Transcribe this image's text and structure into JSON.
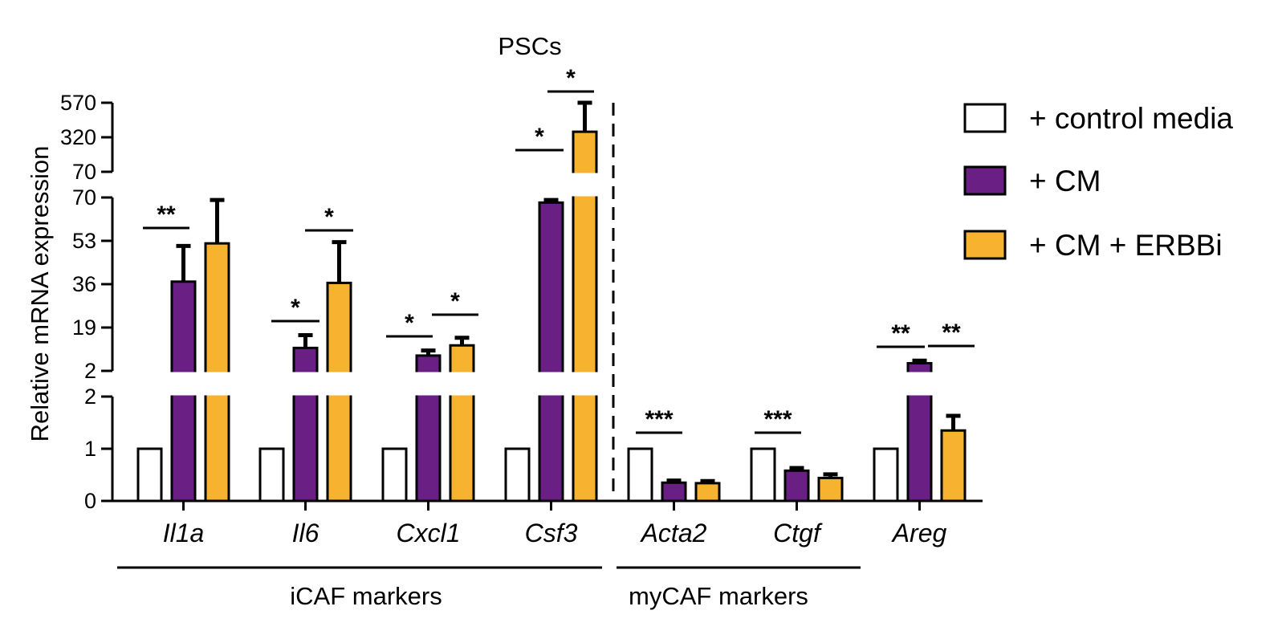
{
  "chart_data": {
    "type": "bar",
    "title": "PSCs",
    "ylabel": "Relative mRNA expression",
    "xlabel": "",
    "y_axis_segments": [
      {
        "name": "lower",
        "ylim": [
          0,
          2
        ],
        "ticks": [
          "0",
          "1",
          "2"
        ]
      },
      {
        "name": "middle",
        "ylim": [
          2,
          70
        ],
        "ticks": [
          "2",
          "19",
          "36",
          "53",
          "70"
        ]
      },
      {
        "name": "upper",
        "ylim": [
          70,
          570
        ],
        "ticks": [
          "70",
          "320",
          "570"
        ]
      }
    ],
    "categories": [
      "Il1a",
      "Il6",
      "Cxcl1",
      "Csf3",
      "Acta2",
      "Ctgf",
      "Areg"
    ],
    "series": [
      {
        "name": "+ control media",
        "color": "#ffffff",
        "values": [
          1,
          1,
          1,
          1,
          1,
          1,
          1
        ],
        "errors": [
          0,
          0,
          0,
          0,
          0,
          0,
          0
        ]
      },
      {
        "name": "+ CM",
        "color": "#6a1f85",
        "values": [
          37,
          11,
          8,
          68,
          0.35,
          0.58,
          5
        ],
        "errors": [
          14,
          5,
          2,
          1,
          0.04,
          0.05,
          1
        ]
      },
      {
        "name": "+ CM + ERBBi",
        "color": "#f7b32f",
        "values": [
          52,
          36.5,
          12,
          360,
          0.34,
          0.44,
          1.35
        ],
        "errors": [
          17,
          16,
          3,
          210,
          0.04,
          0.07,
          0.28
        ]
      }
    ],
    "significance": [
      {
        "category": "Il1a",
        "between": [
          "+ control media",
          "+ CM"
        ],
        "label": "**"
      },
      {
        "category": "Il6",
        "between": [
          "+ control media",
          "+ CM"
        ],
        "label": "*"
      },
      {
        "category": "Il6",
        "between": [
          "+ CM",
          "+ CM + ERBBi"
        ],
        "label": "*"
      },
      {
        "category": "Cxcl1",
        "between": [
          "+ control media",
          "+ CM"
        ],
        "label": "*"
      },
      {
        "category": "Cxcl1",
        "between": [
          "+ CM",
          "+ CM + ERBBi"
        ],
        "label": "*"
      },
      {
        "category": "Csf3",
        "between": [
          "+ control media",
          "+ CM"
        ],
        "label": "*"
      },
      {
        "category": "Csf3",
        "between": [
          "+ CM",
          "+ CM + ERBBi"
        ],
        "label": "*"
      },
      {
        "category": "Acta2",
        "between": [
          "+ control media",
          "+ CM"
        ],
        "label": "***"
      },
      {
        "category": "Ctgf",
        "between": [
          "+ control media",
          "+ CM"
        ],
        "label": "***"
      },
      {
        "category": "Areg",
        "between": [
          "+ control media",
          "+ CM"
        ],
        "label": "**"
      },
      {
        "category": "Areg",
        "between": [
          "+ CM",
          "+ CM + ERBBi"
        ],
        "label": "**"
      }
    ],
    "groups": [
      {
        "label": "iCAF markers",
        "categories": [
          "Il1a",
          "Il6",
          "Cxcl1",
          "Csf3"
        ]
      },
      {
        "label": "myCAF markers",
        "categories": [
          "Acta2",
          "Ctgf",
          "Areg"
        ]
      }
    ],
    "legend_position": "top-right"
  }
}
